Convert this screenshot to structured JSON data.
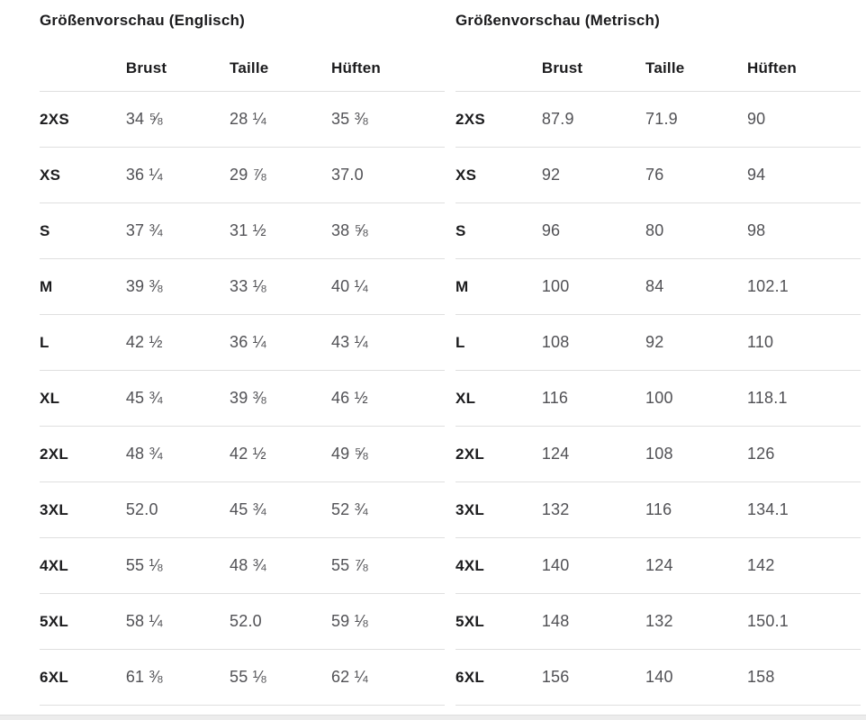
{
  "colors": {
    "title_text": "#1b1b1d",
    "header_text": "#1b1b1d",
    "size_label_text": "#1b1b1d",
    "value_text": "#515155",
    "row_border": "#dfdfdf",
    "bottom_bar": "#ececec"
  },
  "tables": [
    {
      "title": "Größenvorschau (Englisch)",
      "headers": [
        "Brust",
        "Taille",
        "Hüften"
      ],
      "rows": [
        {
          "size": "2XS",
          "values": [
            "34 ⅝",
            "28 ¼",
            "35 ⅜"
          ]
        },
        {
          "size": "XS",
          "values": [
            "36 ¼",
            "29 ⅞",
            "37.0"
          ]
        },
        {
          "size": "S",
          "values": [
            "37 ¾",
            "31 ½",
            "38 ⅝"
          ]
        },
        {
          "size": "M",
          "values": [
            "39 ⅜",
            "33 ⅛",
            "40 ¼"
          ]
        },
        {
          "size": "L",
          "values": [
            "42 ½",
            "36 ¼",
            "43 ¼"
          ]
        },
        {
          "size": "XL",
          "values": [
            "45 ¾",
            "39 ⅜",
            "46 ½"
          ]
        },
        {
          "size": "2XL",
          "values": [
            "48 ¾",
            "42 ½",
            "49 ⅝"
          ]
        },
        {
          "size": "3XL",
          "values": [
            "52.0",
            "45 ¾",
            "52 ¾"
          ]
        },
        {
          "size": "4XL",
          "values": [
            "55 ⅛",
            "48 ¾",
            "55 ⅞"
          ]
        },
        {
          "size": "5XL",
          "values": [
            "58 ¼",
            "52.0",
            "59 ⅛"
          ]
        },
        {
          "size": "6XL",
          "values": [
            "61 ⅜",
            "55 ⅛",
            "62 ¼"
          ]
        }
      ]
    },
    {
      "title": "Größenvorschau (Metrisch)",
      "headers": [
        "Brust",
        "Taille",
        "Hüften"
      ],
      "rows": [
        {
          "size": "2XS",
          "values": [
            "87.9",
            "71.9",
            "90"
          ]
        },
        {
          "size": "XS",
          "values": [
            "92",
            "76",
            "94"
          ]
        },
        {
          "size": "S",
          "values": [
            "96",
            "80",
            "98"
          ]
        },
        {
          "size": "M",
          "values": [
            "100",
            "84",
            "102.1"
          ]
        },
        {
          "size": "L",
          "values": [
            "108",
            "92",
            "110"
          ]
        },
        {
          "size": "XL",
          "values": [
            "116",
            "100",
            "118.1"
          ]
        },
        {
          "size": "2XL",
          "values": [
            "124",
            "108",
            "126"
          ]
        },
        {
          "size": "3XL",
          "values": [
            "132",
            "116",
            "134.1"
          ]
        },
        {
          "size": "4XL",
          "values": [
            "140",
            "124",
            "142"
          ]
        },
        {
          "size": "5XL",
          "values": [
            "148",
            "132",
            "150.1"
          ]
        },
        {
          "size": "6XL",
          "values": [
            "156",
            "140",
            "158"
          ]
        }
      ]
    }
  ]
}
